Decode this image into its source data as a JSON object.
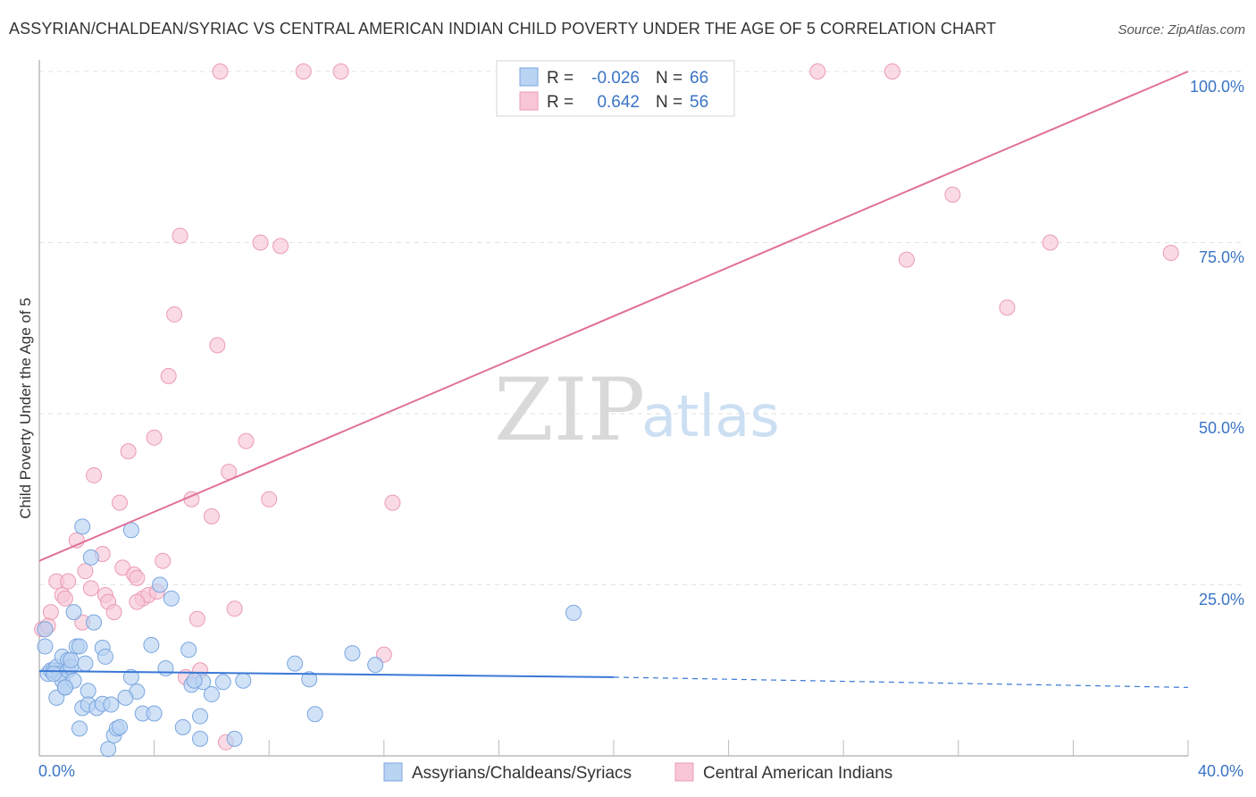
{
  "title": "ASSYRIAN/CHALDEAN/SYRIAC VS CENTRAL AMERICAN INDIAN CHILD POVERTY UNDER THE AGE OF 5 CORRELATION CHART",
  "source": "Source: ZipAtlas.com",
  "watermark": {
    "zip": "ZIP",
    "atlas": "atlas"
  },
  "colors": {
    "blue": "#3a78d6",
    "pink": "#e0709a",
    "blue_fill": "#b9d3f3",
    "pink_fill": "#f8c6d6",
    "tick": "#3a74c6"
  },
  "legend_top": [
    {
      "r_label": "R =",
      "r_value": "-0.026",
      "n_label": "N =",
      "n_value": "66"
    },
    {
      "r_label": "R =",
      "r_value": "0.642",
      "n_label": "N =",
      "n_value": "56"
    }
  ],
  "legend_bottom": [
    "Assyrians/Chaldeans/Syriacs",
    "Central American Indians"
  ],
  "chart_data": {
    "type": "scatter",
    "title": "ASSYRIAN/CHALDEAN/SYRIAC VS CENTRAL AMERICAN INDIAN CHILD POVERTY UNDER THE AGE OF 5 CORRELATION CHART",
    "xlabel": "",
    "ylabel": "Child Poverty Under the Age of 5",
    "xlim": [
      0,
      40
    ],
    "ylim": [
      0,
      100
    ],
    "x_tick_labels": [
      "0.0%",
      "40.0%"
    ],
    "y_ticks": [
      25,
      50,
      75,
      100
    ],
    "y_tick_labels": [
      "25.0%",
      "50.0%",
      "75.0%",
      "100.0%"
    ],
    "series": [
      {
        "name": "Assyrians/Chaldeans/Syriacs",
        "r": -0.026,
        "n": 66,
        "trend": {
          "x": [
            0,
            20,
            40
          ],
          "y": [
            12.4,
            11.5,
            10.0
          ],
          "solid_until": 20
        },
        "points": [
          [
            0.2,
            18.5
          ],
          [
            0.2,
            16
          ],
          [
            0.3,
            12
          ],
          [
            0.4,
            12.5
          ],
          [
            0.5,
            12.5
          ],
          [
            0.6,
            8.5
          ],
          [
            0.6,
            13
          ],
          [
            0.7,
            12
          ],
          [
            0.8,
            14.5
          ],
          [
            0.8,
            11
          ],
          [
            0.9,
            10
          ],
          [
            0.9,
            10
          ],
          [
            1.0,
            14
          ],
          [
            1.0,
            12.5
          ],
          [
            1.1,
            13
          ],
          [
            1.2,
            11
          ],
          [
            1.2,
            21
          ],
          [
            1.3,
            16
          ],
          [
            1.4,
            16
          ],
          [
            1.4,
            4
          ],
          [
            1.5,
            7
          ],
          [
            1.5,
            33.5
          ],
          [
            1.6,
            13.5
          ],
          [
            1.7,
            9.5
          ],
          [
            1.7,
            7.5
          ],
          [
            1.8,
            29
          ],
          [
            1.9,
            19.5
          ],
          [
            2.0,
            7
          ],
          [
            2.2,
            15.8
          ],
          [
            2.2,
            7.6
          ],
          [
            2.3,
            14.5
          ],
          [
            2.4,
            1
          ],
          [
            2.5,
            7.5
          ],
          [
            2.6,
            3
          ],
          [
            2.7,
            4
          ],
          [
            2.8,
            4.2
          ],
          [
            3.2,
            11.5
          ],
          [
            3.2,
            33
          ],
          [
            3.4,
            9.4
          ],
          [
            3.6,
            6.2
          ],
          [
            3.9,
            16.2
          ],
          [
            4.0,
            6.2
          ],
          [
            4.2,
            25
          ],
          [
            4.4,
            12.8
          ],
          [
            4.6,
            23
          ],
          [
            5.0,
            4.2
          ],
          [
            5.2,
            15.5
          ],
          [
            5.3,
            10.4
          ],
          [
            5.6,
            5.8
          ],
          [
            5.6,
            2.5
          ],
          [
            5.7,
            10.8
          ],
          [
            6.0,
            9
          ],
          [
            6.4,
            10.8
          ],
          [
            6.8,
            2.5
          ],
          [
            7.1,
            11
          ],
          [
            8.9,
            13.5
          ],
          [
            9.4,
            11.2
          ],
          [
            9.6,
            6.1
          ],
          [
            10.9,
            15
          ],
          [
            11.7,
            13.3
          ],
          [
            18.6,
            20.9
          ],
          [
            0.9,
            10
          ],
          [
            1.1,
            14
          ],
          [
            0.5,
            12
          ],
          [
            5.4,
            11
          ],
          [
            3.0,
            8.5
          ]
        ]
      },
      {
        "name": "Central American Indians",
        "r": 0.642,
        "n": 56,
        "trend": {
          "x": [
            0,
            40
          ],
          "y": [
            28.5,
            100
          ]
        },
        "points": [
          [
            0.1,
            18.5
          ],
          [
            0.2,
            18.5
          ],
          [
            0.4,
            21
          ],
          [
            0.6,
            25.5
          ],
          [
            0.8,
            23.5
          ],
          [
            0.9,
            23
          ],
          [
            1.0,
            25.5
          ],
          [
            1.3,
            31.5
          ],
          [
            1.5,
            19.5
          ],
          [
            1.6,
            27
          ],
          [
            1.8,
            24.5
          ],
          [
            1.9,
            41
          ],
          [
            2.2,
            29.5
          ],
          [
            2.3,
            23.5
          ],
          [
            2.4,
            22.5
          ],
          [
            2.6,
            21
          ],
          [
            2.8,
            37
          ],
          [
            2.9,
            27.5
          ],
          [
            3.1,
            44.5
          ],
          [
            3.3,
            26.5
          ],
          [
            3.4,
            26
          ],
          [
            3.6,
            23
          ],
          [
            3.8,
            23.5
          ],
          [
            4.0,
            46.5
          ],
          [
            4.1,
            24
          ],
          [
            4.3,
            28.5
          ],
          [
            4.5,
            55.5
          ],
          [
            4.7,
            64.5
          ],
          [
            4.9,
            76
          ],
          [
            5.1,
            11.5
          ],
          [
            5.3,
            37.5
          ],
          [
            5.5,
            20
          ],
          [
            5.6,
            12.5
          ],
          [
            6.0,
            35
          ],
          [
            6.2,
            60
          ],
          [
            6.3,
            100
          ],
          [
            6.5,
            2
          ],
          [
            6.6,
            41.5
          ],
          [
            6.8,
            21.5
          ],
          [
            7.2,
            46
          ],
          [
            7.7,
            75
          ],
          [
            8.0,
            37.5
          ],
          [
            8.4,
            74.5
          ],
          [
            9.2,
            100
          ],
          [
            10.5,
            100
          ],
          [
            12.0,
            14.8
          ],
          [
            12.3,
            37
          ],
          [
            27.1,
            100
          ],
          [
            29.7,
            100
          ],
          [
            30.2,
            72.5
          ],
          [
            31.8,
            82
          ],
          [
            33.7,
            65.5
          ],
          [
            35.2,
            75
          ],
          [
            39.4,
            73.5
          ],
          [
            0.3,
            19
          ],
          [
            3.4,
            22.5
          ]
        ]
      }
    ]
  }
}
